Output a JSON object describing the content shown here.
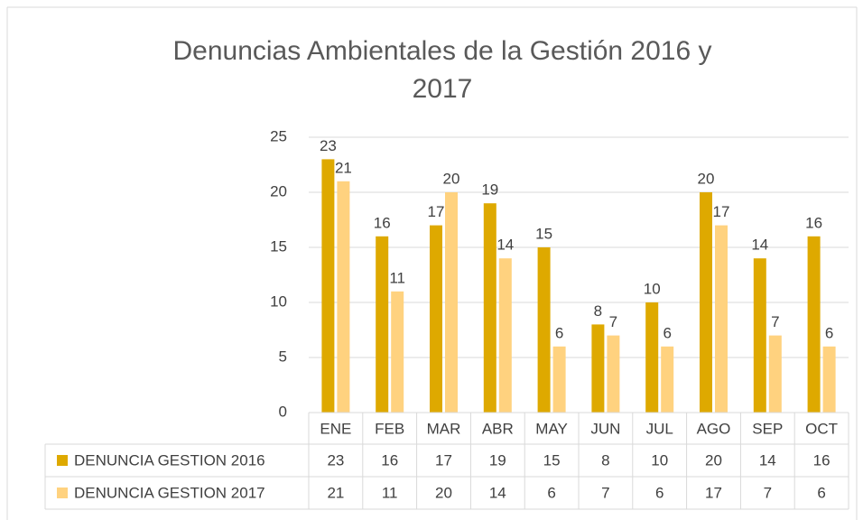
{
  "chart_data": {
    "type": "bar",
    "title": "Denuncias Ambientales de la Gestión 2016 y 2017",
    "categories": [
      "ENE",
      "FEB",
      "MAR",
      "ABR",
      "MAY",
      "JUN",
      "JUL",
      "AGO",
      "SEP",
      "OCT"
    ],
    "series": [
      {
        "name": "DENUNCIA GESTION 2016",
        "color": "#dea900",
        "values": [
          23,
          16,
          17,
          19,
          15,
          8,
          10,
          20,
          14,
          16
        ]
      },
      {
        "name": "DENUNCIA GESTION 2017",
        "color": "#ffd27f",
        "values": [
          21,
          11,
          20,
          14,
          6,
          7,
          6,
          17,
          7,
          6
        ]
      }
    ],
    "ylim": [
      0,
      25
    ],
    "yticks": [
      0,
      5,
      10,
      15,
      20,
      25
    ],
    "grid": true,
    "data_table": true
  }
}
